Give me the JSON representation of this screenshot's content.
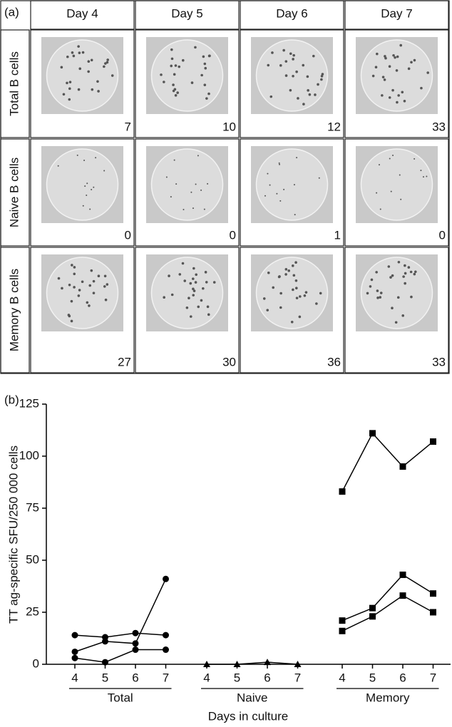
{
  "panel_a": {
    "label": "(a)",
    "columns": [
      "Day 4",
      "Day 5",
      "Day 6",
      "Day 7"
    ],
    "rows": [
      {
        "label": "Total B cells",
        "counts": [
          7,
          10,
          12,
          33
        ]
      },
      {
        "label": "Naive B cells",
        "counts": [
          0,
          0,
          1,
          0
        ]
      },
      {
        "label": "Memory B cells",
        "counts": [
          27,
          30,
          36,
          33
        ]
      }
    ]
  },
  "chart_data": {
    "type": "line",
    "label": "(b)",
    "y_label": "TT ag-specific SFU/250 000 cells",
    "x_label": "Days in culture",
    "categories": [
      "4",
      "5",
      "6",
      "7",
      "4",
      "5",
      "6",
      "7",
      "4",
      "5",
      "6",
      "7"
    ],
    "groups": [
      "Total",
      "Naive",
      "Memory"
    ],
    "ylim": [
      0,
      125
    ],
    "yticks": [
      0,
      25,
      50,
      75,
      100,
      125
    ],
    "series": [
      {
        "color": "#000000",
        "marker": "circle",
        "values": [
          14,
          13,
          15,
          14,
          null,
          null,
          null,
          null,
          null,
          null,
          null,
          null
        ]
      },
      {
        "color": "#000000",
        "marker": "circle",
        "values": [
          6,
          11,
          10,
          41,
          null,
          null,
          null,
          null,
          null,
          null,
          null,
          null
        ]
      },
      {
        "color": "#000000",
        "marker": "circle",
        "values": [
          3,
          1,
          7,
          7,
          null,
          null,
          null,
          null,
          null,
          null,
          null,
          null
        ]
      },
      {
        "color": "#000000",
        "marker": "triangle",
        "values": [
          null,
          null,
          null,
          null,
          0,
          0,
          1,
          0,
          null,
          null,
          null,
          null
        ]
      },
      {
        "color": "#000000",
        "marker": "square",
        "values": [
          null,
          null,
          null,
          null,
          null,
          null,
          null,
          null,
          83,
          111,
          95,
          107
        ]
      },
      {
        "color": "#000000",
        "marker": "square",
        "values": [
          null,
          null,
          null,
          null,
          null,
          null,
          null,
          null,
          21,
          27,
          43,
          34
        ]
      },
      {
        "color": "#000000",
        "marker": "square",
        "values": [
          null,
          null,
          null,
          null,
          null,
          null,
          null,
          null,
          16,
          23,
          33,
          25
        ]
      }
    ]
  }
}
